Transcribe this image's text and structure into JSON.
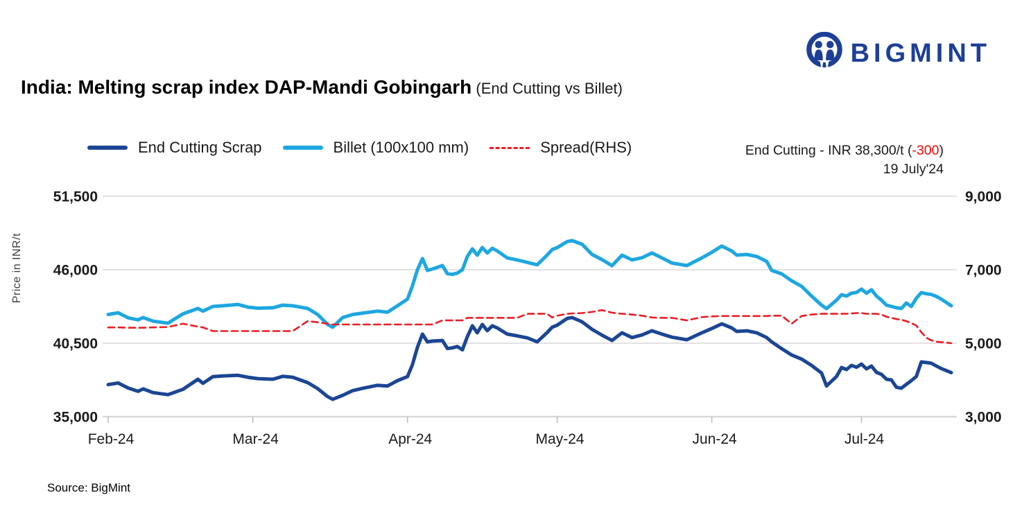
{
  "logo": {
    "text": "BIGMINT"
  },
  "title": {
    "main": "India: Melting scrap index DAP-Mandi Gobingarh",
    "sub": " (End Cutting vs Billet)"
  },
  "legend": [
    {
      "label": "End Cutting Scrap",
      "color": "#1b4693",
      "style": "solid"
    },
    {
      "label": "Billet (100x100 mm)",
      "color": "#1ea7e0",
      "style": "solid"
    },
    {
      "label": "Spread(RHS)",
      "color": "#ec1c24",
      "style": "dashed"
    }
  ],
  "annotation": {
    "prefix": "End Cutting - INR 38,300/t (",
    "delta": "-300",
    "suffix": ")",
    "date": "19 July'24"
  },
  "source": "Source: BigMint",
  "colors": {
    "grid": "#d9d9d9",
    "tick": "#bfbfbf",
    "logo_blue": "#1d3f97",
    "negative": "#ff0000"
  },
  "chart_data": {
    "type": "line",
    "title": "India: Melting scrap index DAP-Mandi Gobingarh (End Cutting vs Billet)",
    "ylabel_left": "Price in INR/t",
    "grid": true,
    "legend_position": "top",
    "left_axis": {
      "min": 35000,
      "max": 51500,
      "ticks": [
        35000,
        40500,
        46000,
        51500
      ],
      "tick_labels": [
        "35,000",
        "40,500",
        "46,000",
        "51,500"
      ]
    },
    "right_axis": {
      "min": 3000,
      "max": 9000,
      "ticks": [
        3000,
        5000,
        7000,
        9000
      ],
      "tick_labels": [
        "3,000",
        "5,000",
        "7,000",
        "9,000"
      ]
    },
    "x_axis": {
      "tick_labels": [
        "Feb-24",
        "Mar-24",
        "Apr-24",
        "May-24",
        "Jun-24",
        "Jul-24"
      ],
      "tick_days": [
        0,
        29,
        60,
        90,
        121,
        151
      ],
      "total_days": 169
    },
    "series": [
      {
        "name": "End Cutting Scrap",
        "axis": "left",
        "color": "#1b4693",
        "dash": false,
        "width": 5
      },
      {
        "name": "Billet (100x100 mm)",
        "axis": "left",
        "color": "#1ea7e0",
        "dash": false,
        "width": 5
      },
      {
        "name": "Spread(RHS)",
        "axis": "right",
        "color": "#ec1c24",
        "dash": true,
        "width": 2.6
      }
    ],
    "points_format": [
      "day_offset_from_Feb01",
      "end_cutting_inr_t",
      "billet_inr_t",
      "spread_rhs_inr_t"
    ],
    "points": [
      [
        0,
        37400,
        42650,
        5430
      ],
      [
        2,
        37520,
        42780,
        5430
      ],
      [
        4,
        37150,
        42400,
        5420
      ],
      [
        6,
        36900,
        42250,
        5420
      ],
      [
        7,
        37080,
        42420,
        5420
      ],
      [
        9,
        36800,
        42150,
        5430
      ],
      [
        12,
        36650,
        42000,
        5440
      ],
      [
        15,
        37050,
        42700,
        5530
      ],
      [
        18,
        37800,
        43100,
        5450
      ],
      [
        19,
        37500,
        42900,
        5430
      ],
      [
        21,
        38000,
        43250,
        5330
      ],
      [
        23,
        38050,
        43300,
        5330
      ],
      [
        26,
        38100,
        43400,
        5330
      ],
      [
        28,
        37950,
        43200,
        5330
      ],
      [
        30,
        37850,
        43120,
        5330
      ],
      [
        33,
        37800,
        43150,
        5330
      ],
      [
        35,
        38020,
        43350,
        5330
      ],
      [
        37,
        37950,
        43300,
        5330
      ],
      [
        40,
        37550,
        43100,
        5600
      ],
      [
        42,
        37100,
        42650,
        5570
      ],
      [
        44,
        36500,
        41900,
        5530
      ],
      [
        45,
        36300,
        41700,
        5510
      ],
      [
        47,
        36600,
        42420,
        5510
      ],
      [
        49,
        36950,
        42650,
        5510
      ],
      [
        51,
        37120,
        42750,
        5510
      ],
      [
        54,
        37350,
        42900,
        5510
      ],
      [
        56,
        37300,
        42820,
        5510
      ],
      [
        58,
        37700,
        43300,
        5510
      ],
      [
        60,
        38000,
        43800,
        5510
      ],
      [
        61,
        38900,
        44800,
        5510
      ],
      [
        62,
        40200,
        46000,
        5510
      ],
      [
        63,
        41180,
        46830,
        5510
      ],
      [
        64,
        40600,
        45950,
        5510
      ],
      [
        65,
        40660,
        46050,
        5510
      ],
      [
        67,
        40700,
        46310,
        5620
      ],
      [
        68,
        40100,
        45700,
        5620
      ],
      [
        69,
        40150,
        45650,
        5620
      ],
      [
        70,
        40250,
        45750,
        5620
      ],
      [
        71,
        40000,
        46000,
        5620
      ],
      [
        72,
        41000,
        47000,
        5690
      ],
      [
        73,
        41800,
        47560,
        5690
      ],
      [
        74,
        41280,
        47090,
        5690
      ],
      [
        75,
        41900,
        47660,
        5690
      ],
      [
        76,
        41440,
        47250,
        5690
      ],
      [
        77,
        41800,
        47610,
        5690
      ],
      [
        78,
        41640,
        47400,
        5690
      ],
      [
        80,
        41180,
        46880,
        5690
      ],
      [
        82,
        41050,
        46730,
        5690
      ],
      [
        84,
        40900,
        46550,
        5800
      ],
      [
        86,
        40600,
        46370,
        5800
      ],
      [
        88,
        41300,
        47100,
        5800
      ],
      [
        89,
        41700,
        47510,
        5700
      ],
      [
        90,
        41850,
        47650,
        5750
      ],
      [
        92,
        42350,
        48100,
        5800
      ],
      [
        93,
        42420,
        48180,
        5810
      ],
      [
        95,
        42100,
        47900,
        5820
      ],
      [
        97,
        41540,
        47140,
        5850
      ],
      [
        99,
        41100,
        46750,
        5900
      ],
      [
        101,
        40700,
        46300,
        5830
      ],
      [
        103,
        41280,
        47090,
        5800
      ],
      [
        105,
        40920,
        46730,
        5780
      ],
      [
        107,
        41120,
        46900,
        5750
      ],
      [
        109,
        41430,
        47250,
        5700
      ],
      [
        111,
        41180,
        46880,
        5690
      ],
      [
        113,
        40950,
        46500,
        5690
      ],
      [
        116,
        40760,
        46310,
        5620
      ],
      [
        119,
        41280,
        46880,
        5710
      ],
      [
        121,
        41600,
        47300,
        5730
      ],
      [
        123,
        41950,
        47770,
        5740
      ],
      [
        125,
        41640,
        47400,
        5740
      ],
      [
        126,
        41380,
        47090,
        5740
      ],
      [
        128,
        41430,
        47140,
        5740
      ],
      [
        130,
        41280,
        46990,
        5740
      ],
      [
        132,
        40920,
        46620,
        5740
      ],
      [
        133,
        40600,
        45950,
        5750
      ],
      [
        135,
        40090,
        45690,
        5750
      ],
      [
        137,
        39620,
        45170,
        5530
      ],
      [
        139,
        39310,
        44760,
        5740
      ],
      [
        141,
        38840,
        44030,
        5780
      ],
      [
        143,
        38270,
        43350,
        5800
      ],
      [
        144,
        37300,
        43090,
        5800
      ],
      [
        146,
        38010,
        43720,
        5800
      ],
      [
        147,
        38680,
        44130,
        5800
      ],
      [
        148,
        38530,
        44030,
        5800
      ],
      [
        149,
        38840,
        44240,
        5810
      ],
      [
        150,
        38700,
        44300,
        5820
      ],
      [
        151,
        38940,
        44550,
        5820
      ],
      [
        152,
        38580,
        44240,
        5800
      ],
      [
        153,
        38790,
        44500,
        5800
      ],
      [
        154,
        38320,
        44030,
        5800
      ],
      [
        155,
        38170,
        43720,
        5780
      ],
      [
        156,
        37800,
        43350,
        5720
      ],
      [
        157,
        37750,
        43250,
        5690
      ],
      [
        158,
        37200,
        43150,
        5655
      ],
      [
        159,
        37130,
        43100,
        5640
      ],
      [
        160,
        37420,
        43510,
        5600
      ],
      [
        161,
        37700,
        43250,
        5550
      ],
      [
        162,
        38010,
        43870,
        5480
      ],
      [
        163,
        39100,
        44290,
        5300
      ],
      [
        164,
        39050,
        44200,
        5150
      ],
      [
        165,
        39000,
        44150,
        5080
      ],
      [
        166,
        38800,
        44000,
        5040
      ],
      [
        167,
        38600,
        43800,
        5030
      ],
      [
        169,
        38300,
        43300,
        5000
      ]
    ]
  }
}
